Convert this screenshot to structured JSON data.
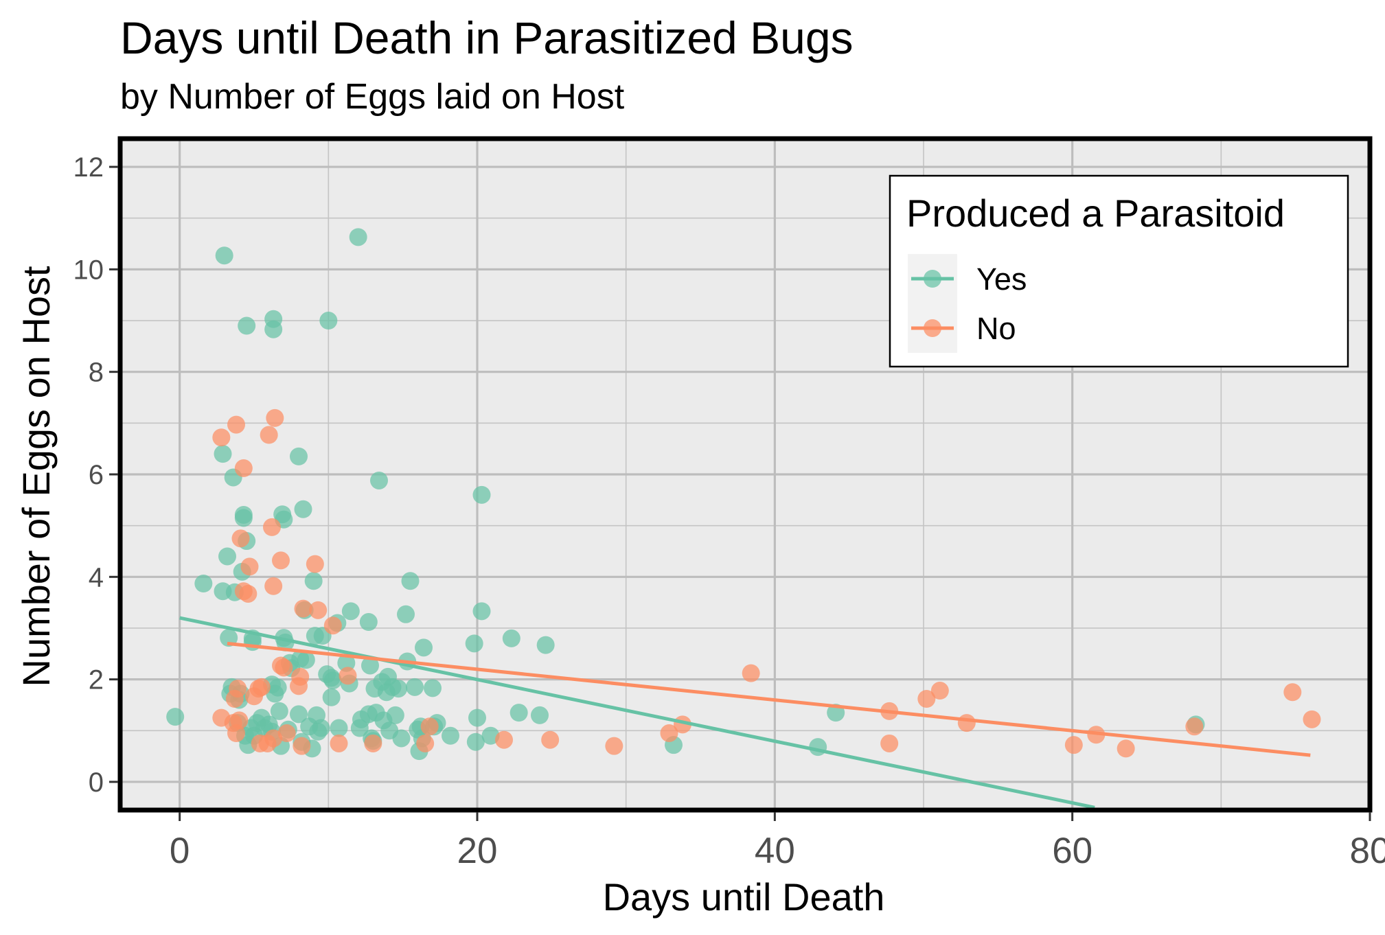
{
  "chart_data": {
    "type": "scatter",
    "title": "Days until Death in Parasitized Bugs",
    "subtitle": "by Number of Eggs laid on Host",
    "xlabel": "Days until Death",
    "ylabel": "Number of Eggs on Host",
    "xlim": [
      -4,
      80
    ],
    "ylim": [
      -0.55,
      12.55
    ],
    "x_ticks": [
      0,
      20,
      40,
      60,
      80
    ],
    "y_ticks": [
      0,
      2,
      4,
      6,
      8,
      10,
      12
    ],
    "grid": true,
    "legend": {
      "title": "Produced a Parasitoid",
      "position": "top-right"
    },
    "series": [
      {
        "name": "Yes",
        "color": "#66c2a5",
        "trend": {
          "x": [
            0,
            61.5
          ],
          "y": [
            3.2,
            -0.5
          ]
        },
        "points": [
          [
            -0.3,
            1.27
          ],
          [
            1.6,
            3.87
          ],
          [
            2.9,
            6.4
          ],
          [
            2.9,
            3.72
          ],
          [
            3.0,
            10.27
          ],
          [
            3.2,
            4.4
          ],
          [
            3.3,
            2.81
          ],
          [
            3.4,
            1.72
          ],
          [
            3.5,
            1.85
          ],
          [
            3.6,
            5.94
          ],
          [
            3.7,
            3.7
          ],
          [
            3.9,
            1.15
          ],
          [
            4.0,
            1.6
          ],
          [
            4.1,
            1.72
          ],
          [
            4.2,
            4.1
          ],
          [
            4.3,
            5.21
          ],
          [
            4.3,
            5.15
          ],
          [
            4.4,
            0.9
          ],
          [
            4.5,
            8.9
          ],
          [
            4.5,
            4.7
          ],
          [
            4.6,
            0.72
          ],
          [
            4.8,
            1.05
          ],
          [
            4.9,
            2.8
          ],
          [
            4.9,
            2.73
          ],
          [
            5.0,
            0.9
          ],
          [
            5.2,
            1.15
          ],
          [
            5.5,
            1.25
          ],
          [
            5.7,
            1.05
          ],
          [
            6.0,
            1.12
          ],
          [
            6.2,
            0.98
          ],
          [
            6.2,
            1.9
          ],
          [
            6.3,
            9.03
          ],
          [
            6.3,
            8.83
          ],
          [
            6.4,
            1.72
          ],
          [
            6.6,
            1.84
          ],
          [
            6.7,
            1.38
          ],
          [
            6.8,
            0.7
          ],
          [
            6.9,
            5.22
          ],
          [
            7.0,
            5.12
          ],
          [
            7.0,
            2.81
          ],
          [
            7.1,
            2.72
          ],
          [
            7.3,
            1.02
          ],
          [
            7.4,
            2.32
          ],
          [
            7.5,
            2.22
          ],
          [
            8.0,
            6.35
          ],
          [
            8.0,
            1.32
          ],
          [
            8.1,
            2.4
          ],
          [
            8.2,
            0.78
          ],
          [
            8.3,
            5.32
          ],
          [
            8.4,
            3.35
          ],
          [
            8.5,
            2.38
          ],
          [
            8.7,
            1.08
          ],
          [
            8.9,
            0.65
          ],
          [
            9.0,
            3.92
          ],
          [
            9.1,
            2.85
          ],
          [
            9.2,
            1.3
          ],
          [
            9.3,
            0.98
          ],
          [
            9.5,
            1.05
          ],
          [
            9.6,
            2.85
          ],
          [
            9.9,
            2.1
          ],
          [
            10.0,
            9.0
          ],
          [
            10.2,
            2.03
          ],
          [
            10.2,
            1.65
          ],
          [
            10.3,
            1.98
          ],
          [
            10.6,
            3.1
          ],
          [
            10.7,
            1.05
          ],
          [
            11.2,
            2.32
          ],
          [
            11.4,
            1.92
          ],
          [
            11.5,
            3.33
          ],
          [
            12.0,
            10.63
          ],
          [
            12.1,
            1.05
          ],
          [
            12.2,
            1.22
          ],
          [
            12.7,
            1.32
          ],
          [
            12.7,
            3.12
          ],
          [
            12.8,
            2.27
          ],
          [
            12.9,
            0.85
          ],
          [
            13.0,
            0.8
          ],
          [
            13.1,
            1.82
          ],
          [
            13.2,
            1.35
          ],
          [
            13.4,
            5.88
          ],
          [
            13.6,
            1.95
          ],
          [
            13.7,
            1.2
          ],
          [
            13.9,
            1.75
          ],
          [
            14.0,
            2.05
          ],
          [
            14.1,
            1.0
          ],
          [
            14.3,
            1.85
          ],
          [
            14.5,
            1.3
          ],
          [
            14.7,
            1.82
          ],
          [
            14.9,
            0.85
          ],
          [
            15.2,
            3.27
          ],
          [
            15.3,
            2.35
          ],
          [
            15.5,
            3.92
          ],
          [
            15.8,
            1.85
          ],
          [
            16.0,
            1.02
          ],
          [
            16.1,
            0.6
          ],
          [
            16.2,
            1.08
          ],
          [
            16.3,
            0.85
          ],
          [
            16.4,
            2.62
          ],
          [
            17.0,
            1.83
          ],
          [
            17.1,
            1.08
          ],
          [
            17.3,
            1.15
          ],
          [
            18.2,
            0.9
          ],
          [
            19.8,
            2.7
          ],
          [
            19.9,
            0.78
          ],
          [
            20.0,
            1.25
          ],
          [
            20.3,
            3.33
          ],
          [
            20.3,
            5.6
          ],
          [
            20.9,
            0.9
          ],
          [
            22.3,
            2.8
          ],
          [
            22.8,
            1.35
          ],
          [
            24.2,
            1.3
          ],
          [
            24.6,
            2.67
          ],
          [
            33.2,
            0.72
          ],
          [
            42.9,
            0.68
          ],
          [
            44.1,
            1.35
          ],
          [
            68.3,
            1.12
          ]
        ]
      },
      {
        "name": "No",
        "color": "#fc8d62",
        "trend": {
          "x": [
            3.2,
            76
          ],
          "y": [
            2.7,
            0.52
          ]
        },
        "points": [
          [
            2.8,
            6.72
          ],
          [
            2.8,
            1.25
          ],
          [
            3.6,
            1.15
          ],
          [
            3.7,
            1.62
          ],
          [
            3.8,
            6.97
          ],
          [
            3.8,
            0.95
          ],
          [
            3.9,
            1.82
          ],
          [
            4.0,
            1.2
          ],
          [
            4.1,
            4.75
          ],
          [
            4.3,
            3.72
          ],
          [
            4.3,
            6.12
          ],
          [
            4.6,
            3.67
          ],
          [
            4.7,
            4.2
          ],
          [
            5.0,
            1.67
          ],
          [
            5.3,
            1.82
          ],
          [
            5.4,
            0.75
          ],
          [
            5.5,
            1.85
          ],
          [
            5.9,
            0.75
          ],
          [
            6.0,
            6.77
          ],
          [
            6.2,
            4.97
          ],
          [
            6.3,
            0.85
          ],
          [
            6.3,
            3.82
          ],
          [
            6.4,
            7.1
          ],
          [
            6.8,
            4.32
          ],
          [
            6.8,
            2.27
          ],
          [
            7.0,
            2.23
          ],
          [
            7.2,
            0.95
          ],
          [
            8.0,
            1.87
          ],
          [
            8.1,
            2.05
          ],
          [
            8.2,
            0.7
          ],
          [
            8.3,
            3.38
          ],
          [
            9.1,
            4.25
          ],
          [
            9.3,
            3.35
          ],
          [
            10.3,
            3.05
          ],
          [
            10.7,
            0.75
          ],
          [
            11.3,
            2.07
          ],
          [
            13.0,
            0.75
          ],
          [
            16.5,
            0.75
          ],
          [
            16.8,
            1.08
          ],
          [
            21.8,
            0.82
          ],
          [
            24.9,
            0.82
          ],
          [
            29.2,
            0.7
          ],
          [
            32.9,
            0.95
          ],
          [
            33.8,
            1.12
          ],
          [
            38.4,
            2.12
          ],
          [
            47.7,
            1.38
          ],
          [
            47.7,
            0.75
          ],
          [
            50.2,
            1.62
          ],
          [
            51.1,
            1.78
          ],
          [
            52.9,
            1.15
          ],
          [
            60.1,
            0.72
          ],
          [
            61.6,
            0.92
          ],
          [
            63.6,
            0.65
          ],
          [
            68.2,
            1.08
          ],
          [
            74.8,
            1.75
          ],
          [
            76.1,
            1.22
          ]
        ]
      }
    ]
  }
}
